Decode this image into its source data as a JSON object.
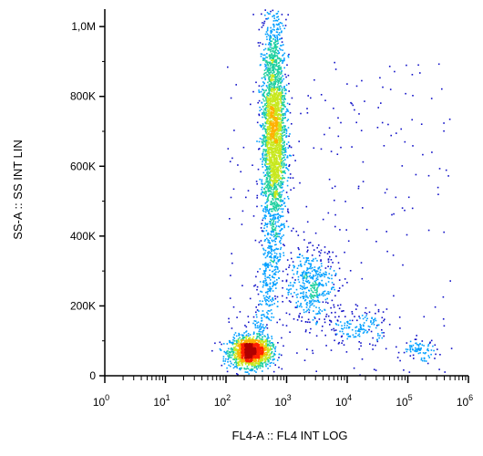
{
  "chart_data": {
    "type": "scatter",
    "style": "flow-cytometry density dot plot",
    "title": "",
    "xlabel": "FL4-A :: FL4 INT LOG",
    "ylabel": "SS-A :: SS INT LIN",
    "xscale": "log",
    "yscale": "linear",
    "xlim": [
      1,
      1000000
    ],
    "ylim": [
      0,
      1050000
    ],
    "x_ticks": [
      {
        "base": "10",
        "exp": "0"
      },
      {
        "base": "10",
        "exp": "1"
      },
      {
        "base": "10",
        "exp": "2"
      },
      {
        "base": "10",
        "exp": "3"
      },
      {
        "base": "10",
        "exp": "4"
      },
      {
        "base": "10",
        "exp": "5"
      },
      {
        "base": "10",
        "exp": "6"
      }
    ],
    "y_ticks": [
      {
        "value": 0,
        "label": "0"
      },
      {
        "value": 200000,
        "label": "200K"
      },
      {
        "value": 400000,
        "label": "400K"
      },
      {
        "value": 600000,
        "label": "600K"
      },
      {
        "value": 800000,
        "label": "800K"
      },
      {
        "value": 1000000,
        "label": "1,0M"
      }
    ],
    "grid": false,
    "legend": "none",
    "colormap": [
      "#1010c8",
      "#00a0ff",
      "#20d0a0",
      "#c8e81e",
      "#ffb000",
      "#ff2000",
      "#b00000"
    ],
    "populations": [
      {
        "x": 250,
        "y": 70000,
        "spread_x_log": 0.17,
        "spread_y": 22000,
        "events": 1500,
        "density": "highest"
      },
      {
        "x": 600,
        "y": 700000,
        "spread_x_log": 0.1,
        "spread_y": 160000,
        "events": 2600,
        "density": "high"
      },
      {
        "x": 2500,
        "y": 260000,
        "spread_x_log": 0.22,
        "spread_y": 55000,
        "events": 450,
        "density": "medium"
      },
      {
        "x": 15000,
        "y": 140000,
        "spread_x_log": 0.25,
        "spread_y": 25000,
        "events": 160,
        "density": "low"
      },
      {
        "x": 150000,
        "y": 75000,
        "spread_x_log": 0.15,
        "spread_y": 15000,
        "events": 80,
        "density": "low"
      }
    ]
  }
}
